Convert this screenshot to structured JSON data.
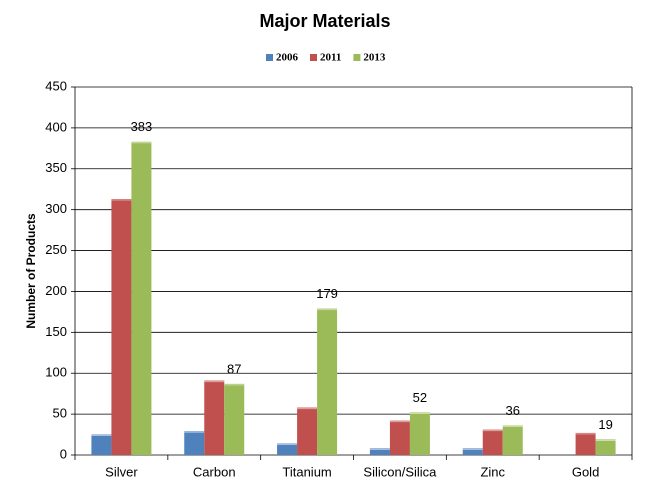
{
  "chart_data": {
    "type": "bar",
    "title": "Major Materials",
    "y_label": "Number of Products",
    "categories": [
      "Silver",
      "Carbon",
      "Titanium",
      "Silicon/Silica",
      "Zinc",
      "Gold"
    ],
    "series": [
      {
        "name": "2006",
        "color": "#4f81bd",
        "values": [
          25,
          29,
          14,
          8,
          8,
          null
        ],
        "show_labels": false
      },
      {
        "name": "2011",
        "color": "#c0504d",
        "values": [
          313,
          91,
          58,
          42,
          31,
          27
        ],
        "show_labels": false
      },
      {
        "name": "2013",
        "color": "#9bbb59",
        "values": [
          383,
          87,
          179,
          52,
          36,
          19
        ],
        "show_labels": true
      }
    ],
    "ylim": [
      0,
      450
    ],
    "yticks": [
      0,
      50,
      100,
      150,
      200,
      250,
      300,
      350,
      400,
      450
    ],
    "grid": true,
    "legend": "top"
  }
}
